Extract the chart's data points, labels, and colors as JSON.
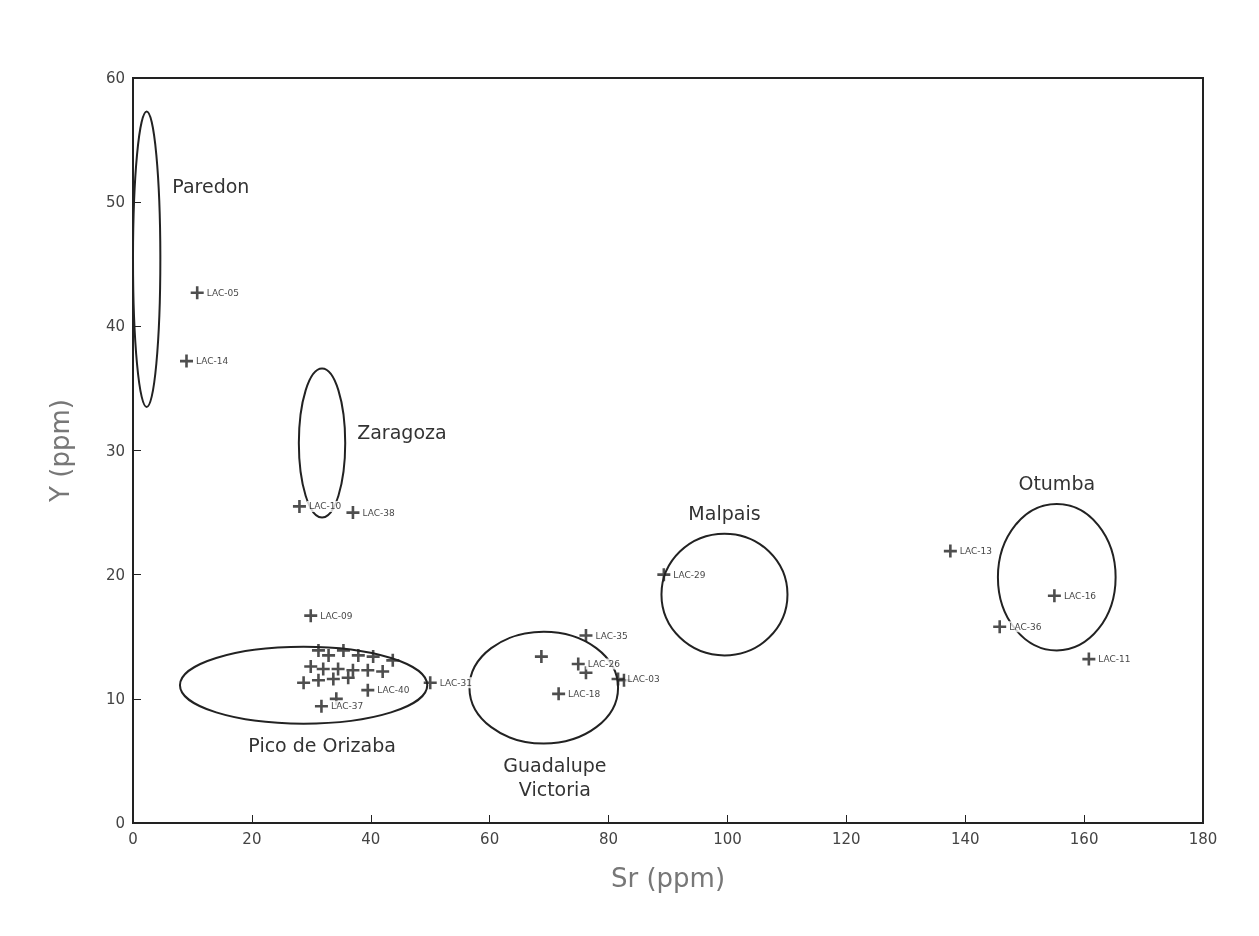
{
  "chart_data": {
    "type": "scatter",
    "xlabel": "Sr (ppm)",
    "ylabel": "Y (ppm)",
    "xlim": [
      0,
      180
    ],
    "xticks": [
      0,
      20,
      40,
      60,
      80,
      100,
      120,
      140,
      160,
      180
    ],
    "ylim": [
      0,
      60
    ],
    "yticks": [
      0,
      10,
      20,
      30,
      40,
      50,
      60
    ],
    "grid": false,
    "series": [
      {
        "marker": "cross",
        "color": "#222222",
        "x": [
          10.8,
          9.0,
          28.0,
          37.0,
          29.9,
          50.0,
          31.2,
          32.9,
          35.4,
          37.9,
          40.4,
          29.9,
          32.0,
          34.5,
          37.0,
          39.5,
          42.0,
          28.7,
          31.2,
          33.7,
          36.2,
          43.7,
          39.5,
          31.7,
          34.2,
          76.2,
          68.7,
          74.9,
          76.2,
          81.6,
          82.6,
          71.6,
          89.3,
          137.5,
          155.0,
          145.8,
          160.8
        ],
        "values": [
          42.7,
          37.2,
          25.5,
          25.0,
          16.7,
          11.3,
          13.9,
          13.5,
          13.9,
          13.5,
          13.4,
          12.6,
          12.4,
          12.4,
          12.3,
          12.3,
          12.2,
          11.3,
          11.5,
          11.6,
          11.7,
          13.1,
          10.7,
          9.4,
          10.0,
          15.1,
          13.4,
          12.8,
          12.1,
          11.6,
          11.5,
          10.4,
          20.0,
          21.9,
          18.3,
          15.8,
          13.2
        ],
        "value_labels": [
          "LAC-05",
          "LAC-14",
          "LAC-10",
          "LAC-38",
          "LAC-09",
          "LAC-31",
          null,
          null,
          null,
          null,
          null,
          null,
          null,
          null,
          null,
          null,
          null,
          null,
          null,
          null,
          null,
          null,
          "LAC-40",
          "LAC-37",
          null,
          "LAC-35",
          null,
          "LAC-26",
          null,
          "LAC-03",
          null,
          "LAC-18",
          "LAC-29",
          "LAC-13",
          "LAC-16",
          "LAC-36",
          "LAC-11"
        ]
      }
    ],
    "annotations": [
      "Paredon",
      "Zaragoza",
      "Pico de Orizaba",
      "Guadalupe\nVictoria",
      "Malpais",
      "Otumba"
    ]
  }
}
